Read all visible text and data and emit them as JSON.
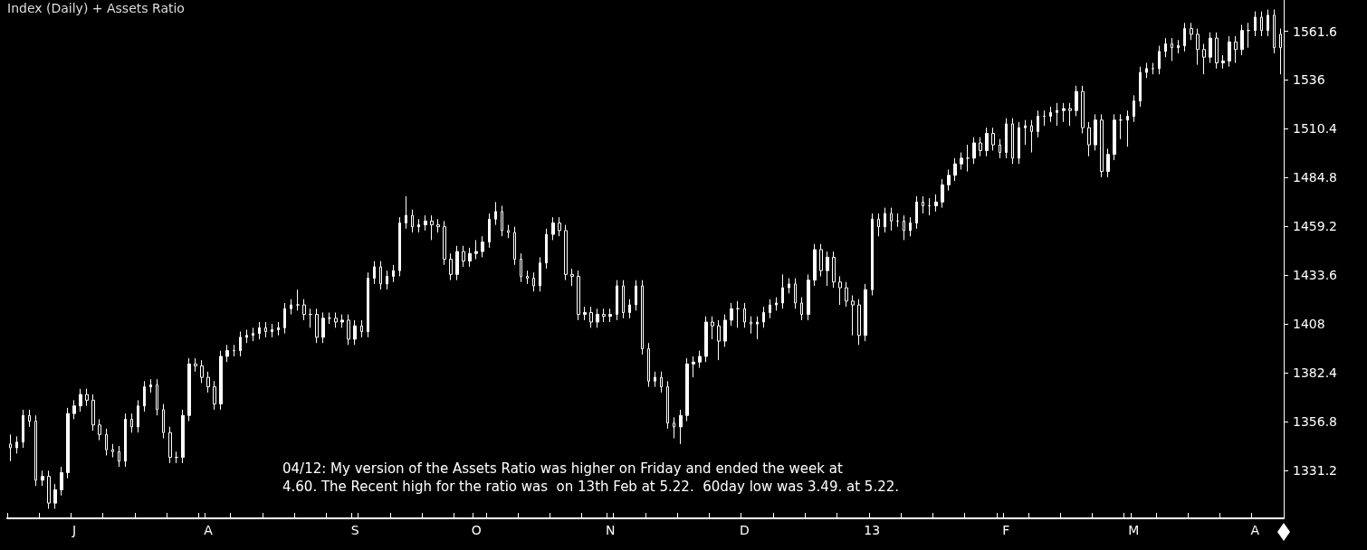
{
  "chart_data": {
    "type": "candlestick",
    "title": "Index (Daily) + Assets Ratio",
    "annotations": [
      "04/12: My version of the Assets Ratio was higher on Friday and ended the week at\n4.60. The Recent high for the ratio was  on 13th Feb at 5.22.  60day low was 3.49. at 5.22."
    ],
    "categories": [
      null,
      null,
      null,
      null,
      null,
      null,
      null,
      null,
      null,
      null,
      "J",
      null,
      null,
      null,
      null,
      null,
      null,
      null,
      null,
      null,
      null,
      null,
      null,
      null,
      null,
      null,
      null,
      null,
      null,
      null,
      null,
      "A",
      null,
      null,
      null,
      null,
      null,
      null,
      null,
      null,
      null,
      null,
      null,
      null,
      null,
      null,
      null,
      null,
      null,
      null,
      null,
      null,
      null,
      null,
      "S",
      null,
      null,
      null,
      null,
      null,
      null,
      null,
      null,
      null,
      null,
      null,
      null,
      null,
      null,
      null,
      null,
      null,
      null,
      "O",
      null,
      null,
      null,
      null,
      null,
      null,
      null,
      null,
      null,
      null,
      null,
      null,
      null,
      null,
      null,
      null,
      null,
      null,
      null,
      null,
      "N",
      null,
      null,
      null,
      null,
      null,
      null,
      null,
      null,
      null,
      null,
      null,
      null,
      null,
      null,
      null,
      null,
      null,
      null,
      null,
      null,
      "D",
      null,
      null,
      null,
      null,
      null,
      null,
      null,
      null,
      null,
      null,
      null,
      null,
      null,
      null,
      null,
      null,
      null,
      null,
      null,
      "13",
      null,
      null,
      null,
      null,
      null,
      null,
      null,
      null,
      null,
      null,
      null,
      null,
      null,
      null,
      null,
      null,
      null,
      null,
      null,
      null,
      "F",
      null,
      null,
      null,
      null,
      null,
      null,
      null,
      null,
      null,
      null,
      null,
      null,
      null,
      null,
      null,
      null,
      null,
      null,
      null,
      "M",
      null,
      null,
      null,
      null,
      null,
      null,
      null,
      null,
      null,
      null,
      null,
      null,
      null,
      null,
      null,
      null,
      null,
      null,
      "A",
      null,
      null,
      null,
      null
    ],
    "color": "#ffffff",
    "ylim": [
      1306,
      1578
    ],
    "yticks": [
      1331.2,
      1356.8,
      1382.4,
      1408,
      1433.6,
      1459.2,
      1484.8,
      1510.4,
      1536,
      1561.6
    ],
    "grid": false,
    "ohlc": [
      [
        1345,
        1350,
        1336,
        1343
      ],
      [
        1343,
        1349,
        1340,
        1346
      ],
      [
        1346,
        1363,
        1343,
        1360
      ],
      [
        1360,
        1363,
        1354,
        1357
      ],
      [
        1357,
        1360,
        1323,
        1326
      ],
      [
        1326,
        1331,
        1323,
        1328
      ],
      [
        1328,
        1331,
        1311,
        1314
      ],
      [
        1314,
        1324,
        1311,
        1321
      ],
      [
        1321,
        1333,
        1318,
        1330
      ],
      [
        1330,
        1364,
        1327,
        1361
      ],
      [
        1361,
        1368,
        1358,
        1365
      ],
      [
        1365,
        1374,
        1362,
        1371
      ],
      [
        1371,
        1374,
        1365,
        1368
      ],
      [
        1368,
        1371,
        1352,
        1355
      ],
      [
        1355,
        1358,
        1347,
        1350
      ],
      [
        1350,
        1353,
        1339,
        1342
      ],
      [
        1342,
        1345,
        1338,
        1341
      ],
      [
        1341,
        1344,
        1333,
        1336
      ],
      [
        1336,
        1361,
        1333,
        1358
      ],
      [
        1358,
        1361,
        1351,
        1354
      ],
      [
        1354,
        1368,
        1351,
        1365
      ],
      [
        1365,
        1378,
        1362,
        1375
      ],
      [
        1375,
        1379,
        1372,
        1376
      ],
      [
        1376,
        1379,
        1360,
        1363
      ],
      [
        1363,
        1366,
        1348,
        1351
      ],
      [
        1351,
        1354,
        1335,
        1338
      ],
      [
        1338,
        1341,
        1335,
        1338
      ],
      [
        1338,
        1363,
        1335,
        1360
      ],
      [
        1360,
        1390,
        1357,
        1387
      ],
      [
        1387,
        1390,
        1383,
        1386
      ],
      [
        1386,
        1389,
        1377,
        1380
      ],
      [
        1380,
        1383,
        1372,
        1375
      ],
      [
        1375,
        1378,
        1363,
        1366
      ],
      [
        1366,
        1394,
        1363,
        1391
      ],
      [
        1391,
        1397,
        1388,
        1394
      ],
      [
        1394,
        1397,
        1391,
        1394
      ],
      [
        1394,
        1404,
        1391,
        1401
      ],
      [
        1401,
        1405,
        1398,
        1402
      ],
      [
        1402,
        1406,
        1399,
        1403
      ],
      [
        1403,
        1409,
        1400,
        1406
      ],
      [
        1406,
        1409,
        1401,
        1404
      ],
      [
        1404,
        1408,
        1401,
        1405
      ],
      [
        1405,
        1409,
        1402,
        1406
      ],
      [
        1406,
        1419,
        1403,
        1416
      ],
      [
        1416,
        1421,
        1413,
        1418
      ],
      [
        1418,
        1426,
        1415,
        1418
      ],
      [
        1418,
        1421,
        1410,
        1413
      ],
      [
        1413,
        1416,
        1406,
        1413
      ],
      [
        1413,
        1416,
        1398,
        1401
      ],
      [
        1401,
        1414,
        1398,
        1411
      ],
      [
        1411,
        1414,
        1408,
        1411
      ],
      [
        1411,
        1414,
        1406,
        1409
      ],
      [
        1409,
        1413,
        1406,
        1410
      ],
      [
        1410,
        1413,
        1397,
        1400
      ],
      [
        1400,
        1410,
        1397,
        1407
      ],
      [
        1407,
        1410,
        1401,
        1404
      ],
      [
        1404,
        1435,
        1401,
        1432
      ],
      [
        1432,
        1441,
        1429,
        1438
      ],
      [
        1438,
        1441,
        1426,
        1429
      ],
      [
        1429,
        1436,
        1426,
        1433
      ],
      [
        1433,
        1439,
        1430,
        1436
      ],
      [
        1436,
        1464,
        1433,
        1461
      ],
      [
        1461,
        1475,
        1458,
        1465
      ],
      [
        1465,
        1468,
        1456,
        1459
      ],
      [
        1459,
        1463,
        1456,
        1460
      ],
      [
        1460,
        1465,
        1457,
        1462
      ],
      [
        1462,
        1465,
        1452,
        1460
      ],
      [
        1460,
        1463,
        1456,
        1459
      ],
      [
        1459,
        1462,
        1439,
        1442
      ],
      [
        1442,
        1445,
        1431,
        1434
      ],
      [
        1434,
        1449,
        1431,
        1446
      ],
      [
        1446,
        1449,
        1438,
        1441
      ],
      [
        1441,
        1448,
        1438,
        1445
      ],
      [
        1445,
        1452,
        1442,
        1446
      ],
      [
        1446,
        1454,
        1443,
        1451
      ],
      [
        1451,
        1466,
        1448,
        1463
      ],
      [
        1463,
        1472,
        1460,
        1467
      ],
      [
        1467,
        1470,
        1454,
        1457
      ],
      [
        1457,
        1460,
        1453,
        1456
      ],
      [
        1456,
        1459,
        1439,
        1442
      ],
      [
        1442,
        1445,
        1430,
        1433
      ],
      [
        1433,
        1436,
        1429,
        1432
      ],
      [
        1432,
        1435,
        1425,
        1428
      ],
      [
        1428,
        1443,
        1425,
        1440
      ],
      [
        1440,
        1458,
        1437,
        1455
      ],
      [
        1455,
        1464,
        1452,
        1461
      ],
      [
        1461,
        1464,
        1454,
        1457
      ],
      [
        1457,
        1460,
        1431,
        1434
      ],
      [
        1434,
        1437,
        1428,
        1433
      ],
      [
        1433,
        1436,
        1410,
        1413
      ],
      [
        1413,
        1417,
        1410,
        1414
      ],
      [
        1414,
        1417,
        1406,
        1409
      ],
      [
        1409,
        1416,
        1406,
        1413
      ],
      [
        1413,
        1416,
        1409,
        1412
      ],
      [
        1412,
        1416,
        1409,
        1413
      ],
      [
        1413,
        1431,
        1410,
        1428
      ],
      [
        1428,
        1431,
        1411,
        1414
      ],
      [
        1414,
        1421,
        1411,
        1418
      ],
      [
        1418,
        1431,
        1415,
        1428
      ],
      [
        1428,
        1431,
        1392,
        1395
      ],
      [
        1395,
        1398,
        1375,
        1378
      ],
      [
        1378,
        1383,
        1375,
        1380
      ],
      [
        1380,
        1383,
        1372,
        1375
      ],
      [
        1375,
        1378,
        1353,
        1356
      ],
      [
        1356,
        1359,
        1348,
        1354
      ],
      [
        1354,
        1363,
        1345,
        1360
      ],
      [
        1360,
        1390,
        1357,
        1387
      ],
      [
        1387,
        1391,
        1380,
        1388
      ],
      [
        1388,
        1394,
        1385,
        1391
      ],
      [
        1391,
        1412,
        1388,
        1409
      ],
      [
        1409,
        1412,
        1400,
        1407
      ],
      [
        1407,
        1410,
        1389,
        1399
      ],
      [
        1399,
        1413,
        1396,
        1410
      ],
      [
        1410,
        1419,
        1407,
        1416
      ],
      [
        1416,
        1420,
        1406,
        1416
      ],
      [
        1416,
        1419,
        1406,
        1409
      ],
      [
        1409,
        1412,
        1403,
        1408
      ],
      [
        1408,
        1412,
        1400,
        1409
      ],
      [
        1409,
        1417,
        1406,
        1414
      ],
      [
        1414,
        1421,
        1411,
        1418
      ],
      [
        1418,
        1422,
        1415,
        1419
      ],
      [
        1419,
        1434,
        1416,
        1427
      ],
      [
        1427,
        1432,
        1424,
        1429
      ],
      [
        1429,
        1432,
        1416,
        1419
      ],
      [
        1419,
        1422,
        1410,
        1413
      ],
      [
        1413,
        1434,
        1410,
        1431
      ],
      [
        1431,
        1450,
        1428,
        1447
      ],
      [
        1447,
        1450,
        1433,
        1436
      ],
      [
        1436,
        1446,
        1428,
        1443
      ],
      [
        1443,
        1446,
        1427,
        1430
      ],
      [
        1430,
        1433,
        1418,
        1427
      ],
      [
        1427,
        1430,
        1417,
        1420
      ],
      [
        1420,
        1423,
        1402,
        1418
      ],
      [
        1418,
        1421,
        1397,
        1402
      ],
      [
        1402,
        1429,
        1399,
        1426
      ],
      [
        1426,
        1466,
        1423,
        1463
      ],
      [
        1463,
        1466,
        1454,
        1459
      ],
      [
        1459,
        1469,
        1456,
        1466
      ],
      [
        1466,
        1469,
        1457,
        1462
      ],
      [
        1462,
        1466,
        1459,
        1462
      ],
      [
        1462,
        1465,
        1452,
        1457
      ],
      [
        1457,
        1464,
        1454,
        1461
      ],
      [
        1461,
        1475,
        1458,
        1472
      ],
      [
        1472,
        1475,
        1466,
        1470
      ],
      [
        1470,
        1474,
        1465,
        1470
      ],
      [
        1470,
        1476,
        1467,
        1472
      ],
      [
        1472,
        1484,
        1469,
        1481
      ],
      [
        1481,
        1489,
        1478,
        1486
      ],
      [
        1486,
        1495,
        1483,
        1492
      ],
      [
        1492,
        1498,
        1489,
        1495
      ],
      [
        1495,
        1502,
        1488,
        1495
      ],
      [
        1495,
        1506,
        1492,
        1503
      ],
      [
        1503,
        1506,
        1496,
        1499
      ],
      [
        1499,
        1511,
        1496,
        1508
      ],
      [
        1508,
        1511,
        1499,
        1502
      ],
      [
        1502,
        1505,
        1495,
        1498
      ],
      [
        1498,
        1516,
        1495,
        1513
      ],
      [
        1513,
        1516,
        1492,
        1495
      ],
      [
        1495,
        1514,
        1492,
        1511
      ],
      [
        1511,
        1515,
        1502,
        1512
      ],
      [
        1512,
        1515,
        1498,
        1509
      ],
      [
        1509,
        1520,
        1506,
        1517
      ],
      [
        1517,
        1520,
        1512,
        1517
      ],
      [
        1517,
        1522,
        1514,
        1519
      ],
      [
        1519,
        1524,
        1512,
        1520
      ],
      [
        1520,
        1524,
        1514,
        1521
      ],
      [
        1521,
        1524,
        1512,
        1520
      ],
      [
        1520,
        1533,
        1517,
        1530
      ],
      [
        1530,
        1533,
        1508,
        1511
      ],
      [
        1511,
        1514,
        1496,
        1502
      ],
      [
        1502,
        1518,
        1499,
        1515
      ],
      [
        1515,
        1518,
        1485,
        1488
      ],
      [
        1488,
        1500,
        1485,
        1497
      ],
      [
        1497,
        1518,
        1494,
        1515
      ],
      [
        1515,
        1518,
        1505,
        1515
      ],
      [
        1515,
        1520,
        1501,
        1517
      ],
      [
        1517,
        1528,
        1514,
        1525
      ],
      [
        1525,
        1543,
        1522,
        1540
      ],
      [
        1540,
        1545,
        1537,
        1542
      ],
      [
        1542,
        1545,
        1539,
        1542
      ],
      [
        1542,
        1554,
        1539,
        1551
      ],
      [
        1551,
        1558,
        1548,
        1555
      ],
      [
        1555,
        1558,
        1546,
        1553
      ],
      [
        1553,
        1557,
        1550,
        1554
      ],
      [
        1554,
        1566,
        1551,
        1563
      ],
      [
        1563,
        1566,
        1557,
        1560
      ],
      [
        1560,
        1563,
        1544,
        1552
      ],
      [
        1552,
        1555,
        1539,
        1548
      ],
      [
        1548,
        1561,
        1545,
        1558
      ],
      [
        1558,
        1561,
        1542,
        1545
      ],
      [
        1545,
        1549,
        1542,
        1546
      ],
      [
        1546,
        1559,
        1543,
        1556
      ],
      [
        1556,
        1559,
        1545,
        1552
      ],
      [
        1552,
        1565,
        1549,
        1562
      ],
      [
        1562,
        1566,
        1553,
        1562
      ],
      [
        1562,
        1572,
        1559,
        1569
      ],
      [
        1569,
        1572,
        1559,
        1562
      ],
      [
        1562,
        1573,
        1559,
        1570
      ],
      [
        1570,
        1573,
        1550,
        1553
      ],
      [
        1560,
        1563,
        1539,
        1553
      ]
    ]
  }
}
